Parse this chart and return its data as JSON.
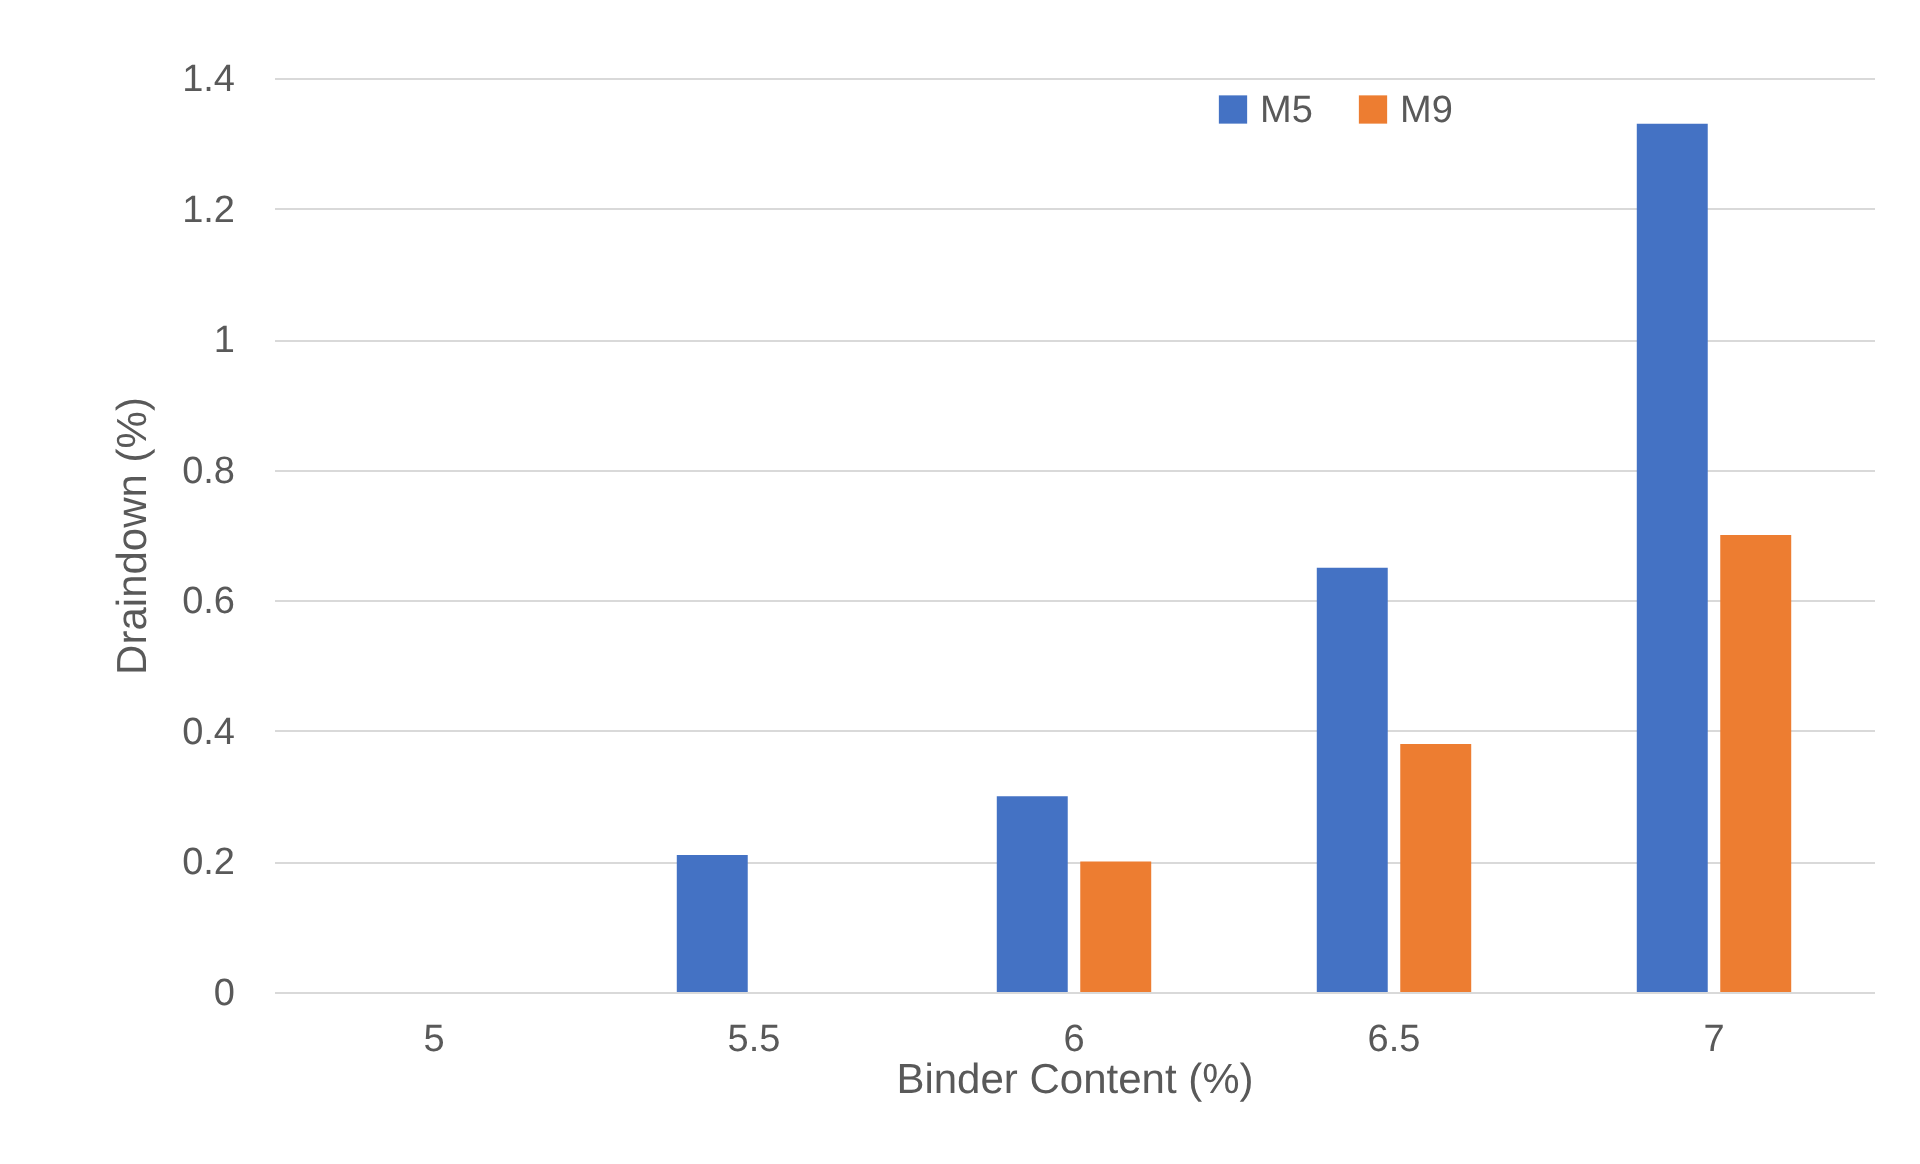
{
  "chart_data": {
    "type": "bar",
    "xlabel": "Binder Content (%)",
    "ylabel": "Draindown (%)",
    "categories": [
      "5",
      "5.5",
      "6",
      "6.5",
      "7"
    ],
    "series": [
      {
        "name": "M5",
        "color": "#4472c4",
        "values": [
          0,
          0.21,
          0.3,
          0.65,
          1.33
        ]
      },
      {
        "name": "M9",
        "color": "#ed7d31",
        "values": [
          0,
          0,
          0.2,
          0.38,
          0.7
        ]
      }
    ],
    "ylim": [
      0,
      1.4
    ],
    "yticks": [
      0,
      0.2,
      0.4,
      0.6,
      0.8,
      1,
      1.2,
      1.4
    ],
    "grid": "y",
    "legend": "top right"
  }
}
